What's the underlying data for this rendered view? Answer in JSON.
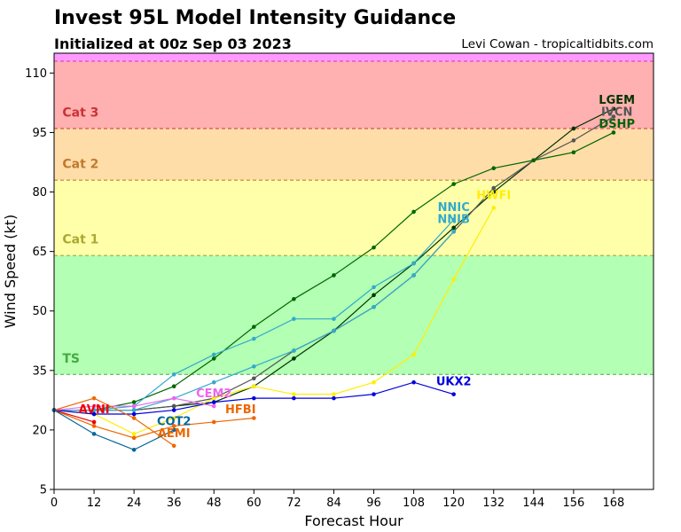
{
  "header": {
    "title": "Invest 95L Model Intensity Guidance",
    "subtitle": "Initialized at 00z Sep 03 2023",
    "credit": "Levi Cowan - tropicaltidbits.com"
  },
  "chart_data": {
    "type": "line",
    "xlabel": "Forecast Hour",
    "ylabel": "Wind Speed (kt)",
    "xlim": [
      0,
      180
    ],
    "ylim": [
      5,
      115
    ],
    "xticks": [
      0,
      12,
      24,
      36,
      48,
      60,
      72,
      84,
      96,
      108,
      120,
      132,
      144,
      156,
      168
    ],
    "yticks": [
      5,
      20,
      35,
      50,
      65,
      80,
      95,
      110
    ],
    "bands": [
      {
        "name": "TS",
        "from": 34,
        "to": 64,
        "color": "#b3ffb3",
        "label_color": "#44aa44",
        "label_y": 37
      },
      {
        "name": "Cat 1",
        "from": 64,
        "to": 83,
        "color": "#ffffaa",
        "label_color": "#aaaa33",
        "label_y": 67
      },
      {
        "name": "Cat 2",
        "from": 83,
        "to": 96,
        "color": "#ffdda9",
        "label_color": "#c07a33",
        "label_y": 86
      },
      {
        "name": "Cat 3",
        "from": 96,
        "to": 113,
        "color": "#ffb0b0",
        "label_color": "#cc3333",
        "label_y": 99
      },
      {
        "name": "",
        "from": 113,
        "to": 115,
        "color": "#ff99ff",
        "label_color": "#cc33cc",
        "label_y": 114
      }
    ],
    "series": [
      {
        "name": "LGEM",
        "color": "#003300",
        "x": [
          0,
          12,
          24,
          36,
          48,
          60,
          72,
          84,
          96,
          108,
          120,
          132,
          144,
          156,
          168
        ],
        "y": [
          25,
          25,
          25,
          26,
          27,
          31,
          38,
          45,
          54,
          62,
          71,
          80,
          88,
          96,
          101
        ],
        "label_x": 169,
        "label_y": 103
      },
      {
        "name": "IVCN",
        "color": "#555555",
        "x": [
          0,
          12,
          24,
          36,
          48,
          60,
          72,
          84,
          96,
          108,
          120,
          132,
          144,
          156,
          168
        ],
        "y": [
          25,
          25,
          25,
          26,
          28,
          33,
          40,
          45,
          51,
          59,
          70,
          81,
          88,
          93,
          99
        ],
        "label_x": 169,
        "label_y": 100
      },
      {
        "name": "DSHP",
        "color": "#006600",
        "x": [
          0,
          12,
          24,
          36,
          48,
          60,
          72,
          84,
          96,
          108,
          120,
          132,
          144,
          156,
          168
        ],
        "y": [
          25,
          25,
          27,
          31,
          38,
          46,
          53,
          59,
          66,
          75,
          82,
          86,
          88,
          90,
          95
        ],
        "label_x": 169,
        "label_y": 97
      },
      {
        "name": "HWFI",
        "color": "#ffee00",
        "x": [
          0,
          12,
          24,
          36,
          48,
          60,
          72,
          84,
          96,
          108,
          120,
          132
        ],
        "y": [
          25,
          24,
          19,
          23,
          28,
          31,
          29,
          29,
          32,
          39,
          58,
          76
        ],
        "label_x": 132,
        "label_y": 79
      },
      {
        "name": "NNIC",
        "color": "#33aacc",
        "x": [
          0,
          12,
          24,
          36,
          48,
          60,
          72,
          84,
          96,
          108,
          120
        ],
        "y": [
          25,
          25,
          26,
          34,
          39,
          43,
          48,
          48,
          56,
          62,
          73
        ],
        "label_x": 120,
        "label_y": 76
      },
      {
        "name": "NNIB",
        "color": "#33aacc",
        "x": [
          0,
          12,
          24,
          36,
          48,
          60,
          72,
          84,
          96,
          108,
          120
        ],
        "y": [
          25,
          25,
          25,
          28,
          32,
          36,
          40,
          45,
          51,
          59,
          70
        ],
        "label_x": 120,
        "label_y": 73
      },
      {
        "name": "UKX2",
        "color": "#0000dd",
        "x": [
          0,
          12,
          24,
          36,
          48,
          60,
          72,
          84,
          96,
          108,
          120
        ],
        "y": [
          25,
          24,
          24,
          25,
          27,
          28,
          28,
          28,
          29,
          32,
          29
        ],
        "label_x": 120,
        "label_y": 32
      },
      {
        "name": "CEM2",
        "color": "#ee66ee",
        "x": [
          0,
          12,
          24,
          36,
          48
        ],
        "y": [
          25,
          26,
          26,
          28,
          26
        ],
        "label_x": 48,
        "label_y": 29
      },
      {
        "name": "HFBI",
        "color": "#ee6600",
        "x": [
          0,
          12,
          24,
          36,
          48,
          60
        ],
        "y": [
          25,
          21,
          18,
          21,
          22,
          23
        ],
        "label_x": 56,
        "label_y": 25
      },
      {
        "name": "AVNI",
        "color": "#ee0000",
        "x": [
          0,
          12
        ],
        "y": [
          25,
          22
        ],
        "label_x": 12,
        "label_y": 25
      },
      {
        "name": "AEMI",
        "color": "#ee6600",
        "x": [
          0,
          12,
          24,
          36
        ],
        "y": [
          25,
          28,
          23,
          16
        ],
        "label_x": 36,
        "label_y": 19
      },
      {
        "name": "COT2",
        "color": "#006699",
        "x": [
          0,
          12,
          24,
          36
        ],
        "y": [
          25,
          19,
          15,
          20
        ],
        "label_x": 36,
        "label_y": 22
      }
    ]
  }
}
